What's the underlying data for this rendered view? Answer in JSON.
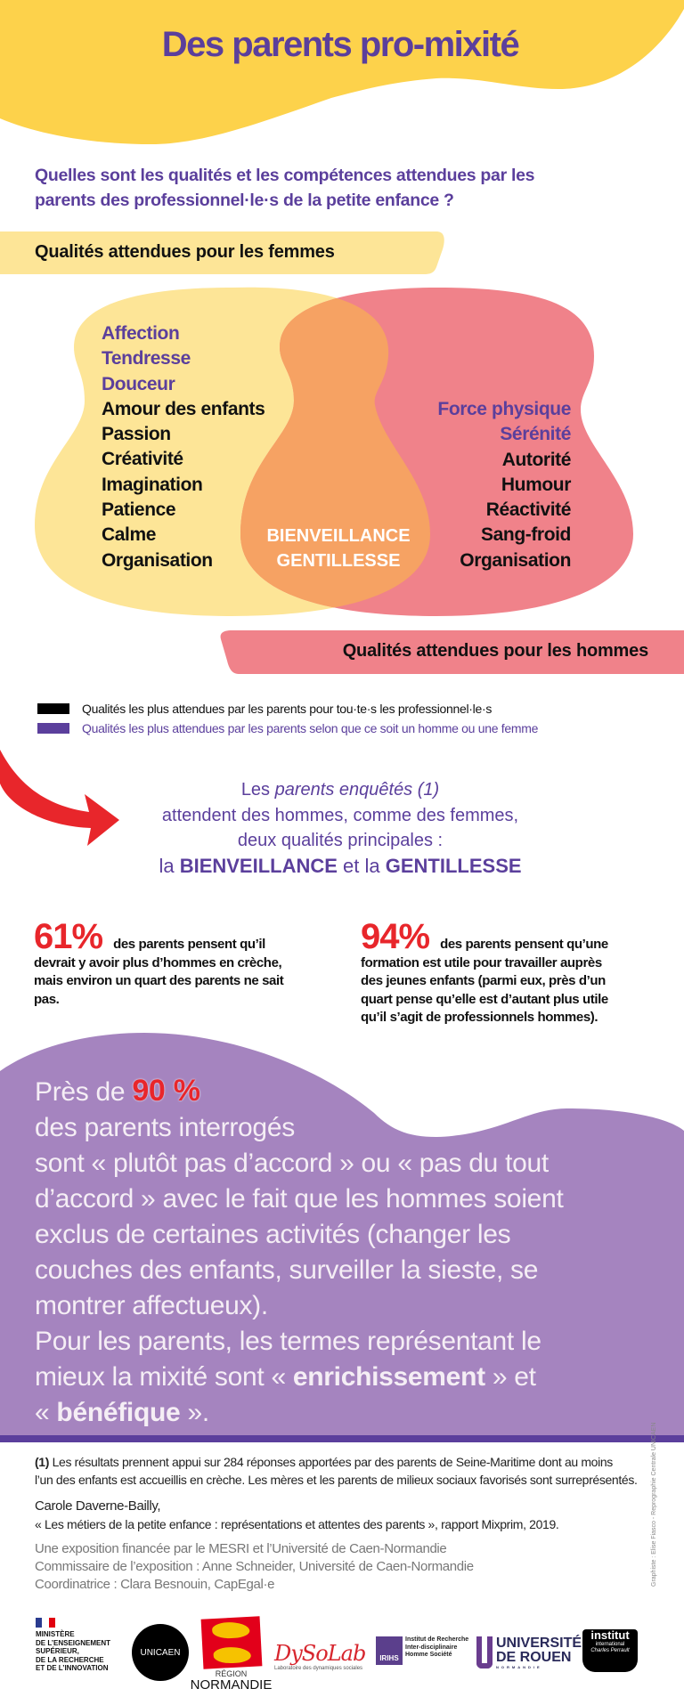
{
  "header": {
    "title": "Des parents pro-mixité"
  },
  "question": {
    "lines": [
      "Quelles sont les qualités et les compétences attendues par les",
      "parents des professionnel·le·s de la petite enfance ?"
    ]
  },
  "bands": {
    "women": "Qualités attendues pour les femmes",
    "men": "Qualités attendues pour les hommes"
  },
  "venn": {
    "women_purple": [
      "Affection",
      "Tendresse",
      "Douceur"
    ],
    "women_black": [
      "Amour des enfants",
      "Passion",
      "Créativité",
      "Imagination",
      "Patience",
      "Calme",
      "Organisation"
    ],
    "men_purple": [
      "Force physique",
      "Sérénité"
    ],
    "men_black": [
      "Autorité",
      "Humour",
      "Réactivité",
      "Sang-froid",
      "Organisation"
    ],
    "shared": [
      "BIENVEILLANCE",
      "GENTILLESSE"
    ],
    "colors": {
      "women": "#fde597",
      "men": "#f0828a",
      "overlap": "#f6a263"
    }
  },
  "legend": {
    "black": "Qualités les plus attendues par les parents pour tou·te·s les professionnel·le·s",
    "purple": "Qualités les plus attendues par les parents selon que ce soit un homme ou une femme"
  },
  "lead": {
    "l1a": "Les ",
    "l1b": "parents enquêtés (1)",
    "l2": "attendent des hommes, comme des femmes,",
    "l3": "deux qualités principales :",
    "l4a": "la ",
    "l4b": "BIENVEILLANCE",
    "l4c": " et la ",
    "l4d": "GENTILLESSE"
  },
  "stats": [
    {
      "value": "61%",
      "lines": [
        "des parents pensent qu’il",
        "devrait y avoir plus d’hommes en crèche,",
        "mais environ un quart des parents ne sait",
        "pas."
      ]
    },
    {
      "value": "94%",
      "lines": [
        "des parents pensent qu’une",
        "formation est utile pour travailler auprès",
        "des jeunes enfants (parmi eux, près d’un",
        "quart pense qu’elle est d’autant plus utile",
        "qu’il s’agit de professionnels hommes)."
      ]
    }
  ],
  "highlight": {
    "pre": "Près de ",
    "value": "90 %",
    "lines": [
      "des parents interrogés",
      "sont « plutôt pas d’accord » ou « pas du tout",
      "d’accord » avec le fait que les hommes soient",
      "exclus de certaines activités (changer les",
      "couches des enfants, surveiller la sieste, se",
      "montrer affectueux).",
      "Pour les parents, les termes représentant le"
    ],
    "l8a": "mieux la mixité sont « ",
    "l8b": "enrichissement",
    "l8c": " » et",
    "l9a": "« ",
    "l9b": "bénéfique",
    "l9c": " »."
  },
  "footnote": {
    "marker": "(1)",
    "line1": " Les résultats prennent appui sur 284 réponses apportées par des parents de Seine-Maritime dont au moins",
    "line2": "l’un des enfants est accueillis en crèche. Les mères et les parents de milieux sociaux favorisés sont surreprésentés."
  },
  "citation": {
    "author": "Carole Daverne-Bailly,",
    "title": "« Les métiers de la petite enfance : représentations et attentes des parents », rapport Mixprim, 2019."
  },
  "credits": [
    "Une exposition financée par le MESRI et l’Université de Caen-Normandie",
    "Commissaire de l’exposition : Anne Schneider, Université de Caen-Normandie",
    "Coordinatrice : Clara Besnouin, CapEgal·e"
  ],
  "graphic_credit": "Graphiste : Elise Fiasco - Reprographie Centrale UNICAEN",
  "logos": {
    "mesri": [
      "MINISTÈRE",
      "DE L’ENSEIGNEMENT",
      "SUPÉRIEUR,",
      "DE LA RECHERCHE",
      "ET DE L’INNOVATION"
    ],
    "unicaen": "UNICAEN",
    "region": [
      "RÉGION",
      "NORMANDIE"
    ],
    "dysolab": [
      "DySoLab",
      "Laboratoire des dynamiques sociales"
    ],
    "irihs": [
      "IRIHS",
      "Institut de Recherche",
      "Inter-disciplinaire",
      "Homme Société"
    ],
    "rouen": [
      "UNIVERSITÉ",
      "DE ROUEN",
      "NORMANDIE"
    ],
    "perrault": [
      "institut",
      "international",
      "Charles Perrault"
    ]
  },
  "colors": {
    "purple": "#5b3f9c",
    "red": "#e8262b",
    "yellow": "#fdd24b",
    "lilac": "#a584bf"
  }
}
